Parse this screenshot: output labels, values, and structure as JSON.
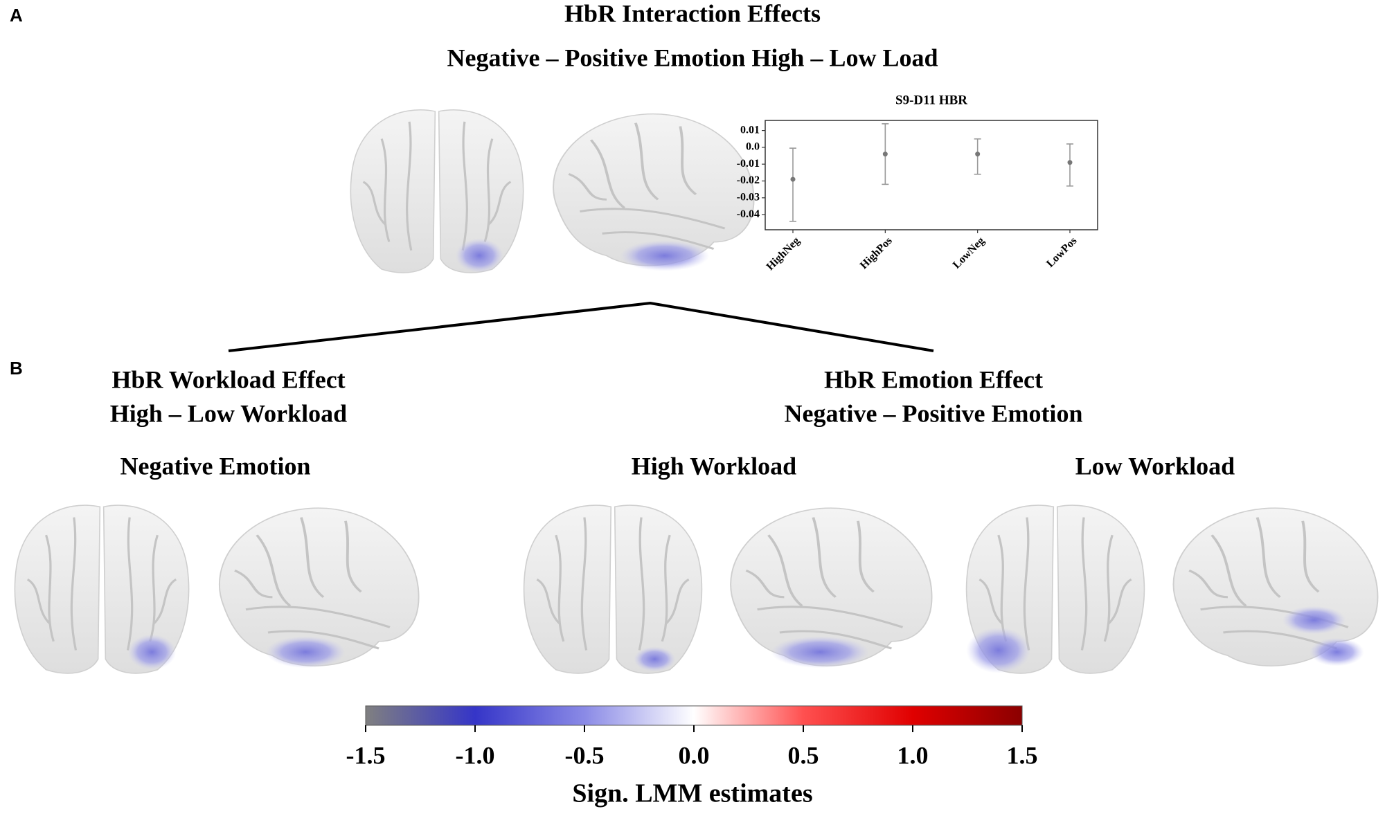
{
  "panel_a": {
    "label": "A",
    "title": "HbR Interaction Effects",
    "subtitle": "Negative – Positive Emotion High – Low Load",
    "chart": {
      "type": "errorbar",
      "title": "S9-D11 HBR",
      "categories": [
        "HighNeg",
        "HighPos",
        "LowNeg",
        "LowPos"
      ],
      "values": [
        -0.019,
        -0.004,
        -0.004,
        -0.009
      ],
      "lower": [
        -0.044,
        -0.022,
        -0.016,
        -0.023
      ],
      "upper": [
        -0.0005,
        0.014,
        0.005,
        0.002
      ],
      "color": "#777777",
      "ylim": [
        -0.049,
        0.016
      ],
      "yticks": [
        0.01,
        {
          "value": 0,
          "label": "0.0"
        },
        -0.01,
        -0.02,
        -0.03,
        -0.04
      ]
    }
  },
  "panel_b": {
    "label": "B",
    "workload": {
      "title": "HbR Workload Effect",
      "subtitle": "High – Low Workload"
    },
    "emotion": {
      "title": "HbR Emotion Effect",
      "subtitle": "Negative – Positive Emotion"
    },
    "conditions": [
      "Negative Emotion",
      "High Workload",
      "Low Workload"
    ]
  },
  "colorbar": {
    "label": "Sign. LMM estimates",
    "lim": [
      -1.5,
      1.5
    ],
    "ticks": [
      -1.5,
      {
        "value": -1,
        "label": "-1.0"
      },
      -0.5,
      {
        "value": 0,
        "label": "0.0"
      },
      0.5,
      {
        "value": 1,
        "label": "1.0"
      },
      1.5
    ],
    "colors": [
      "#808080",
      "#3535c8",
      "#8a8ae6",
      "#ffffff",
      "#ff5050",
      "#e00000",
      "#8b0000"
    ]
  }
}
